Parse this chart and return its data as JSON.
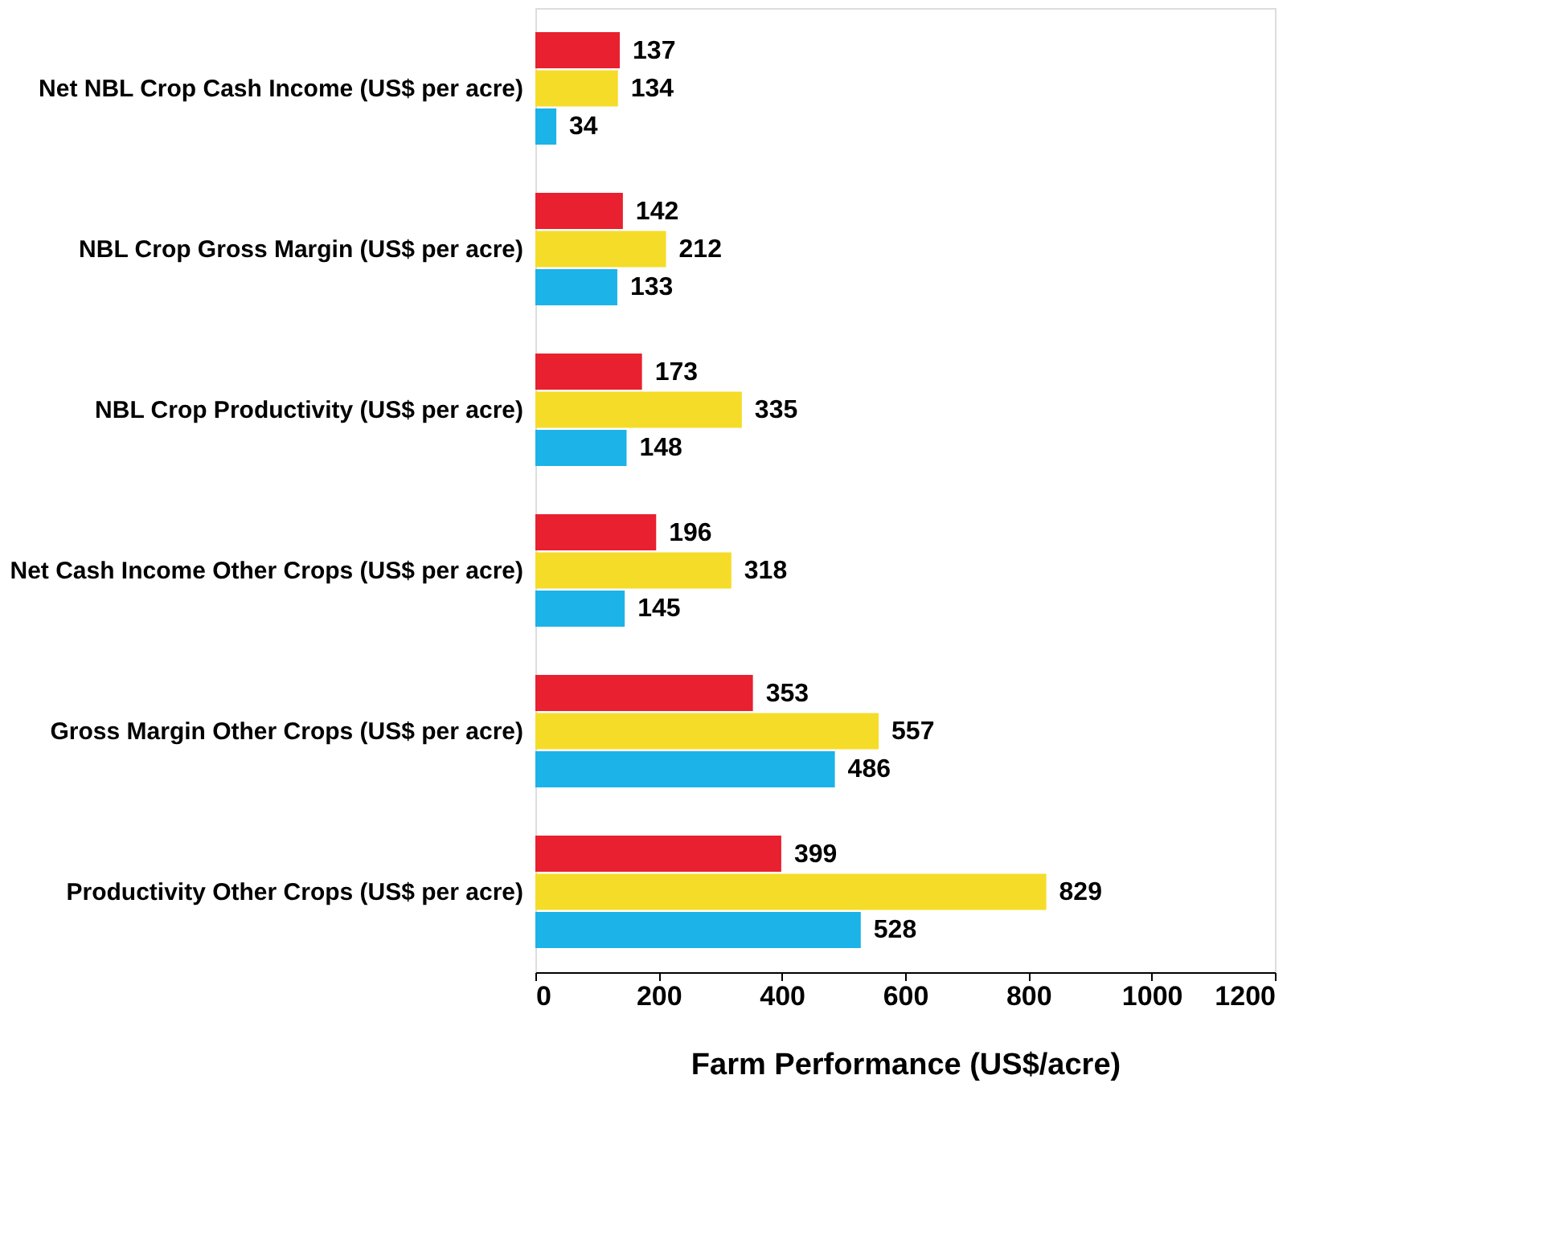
{
  "chart_data": {
    "type": "bar",
    "orientation": "horizontal",
    "xlabel": "Farm Performance (US$/acre)",
    "categories": [
      "Net NBL Crop Cash Income (US$ per acre)",
      "NBL Crop Gross Margin (US$ per acre)",
      "NBL Crop Productivity (US$ per acre)",
      "Net Cash Income Other Crops (US$ per acre)",
      "Gross Margin Other Crops (US$ per acre)",
      "Productivity Other Crops (US$ per acre)"
    ],
    "series": [
      {
        "color": "#e8202f",
        "values": [
          137,
          142,
          173,
          196,
          353,
          399
        ]
      },
      {
        "color": "#f5dc28",
        "values": [
          134,
          212,
          335,
          318,
          557,
          829
        ]
      },
      {
        "color": "#1bb3e8",
        "values": [
          34,
          133,
          148,
          145,
          486,
          528
        ]
      }
    ],
    "xlim": [
      0,
      1200
    ],
    "xticks": [
      0,
      200,
      400,
      600,
      800,
      1000,
      1200
    ],
    "data_labels": true,
    "grid": false,
    "legend": false
  }
}
